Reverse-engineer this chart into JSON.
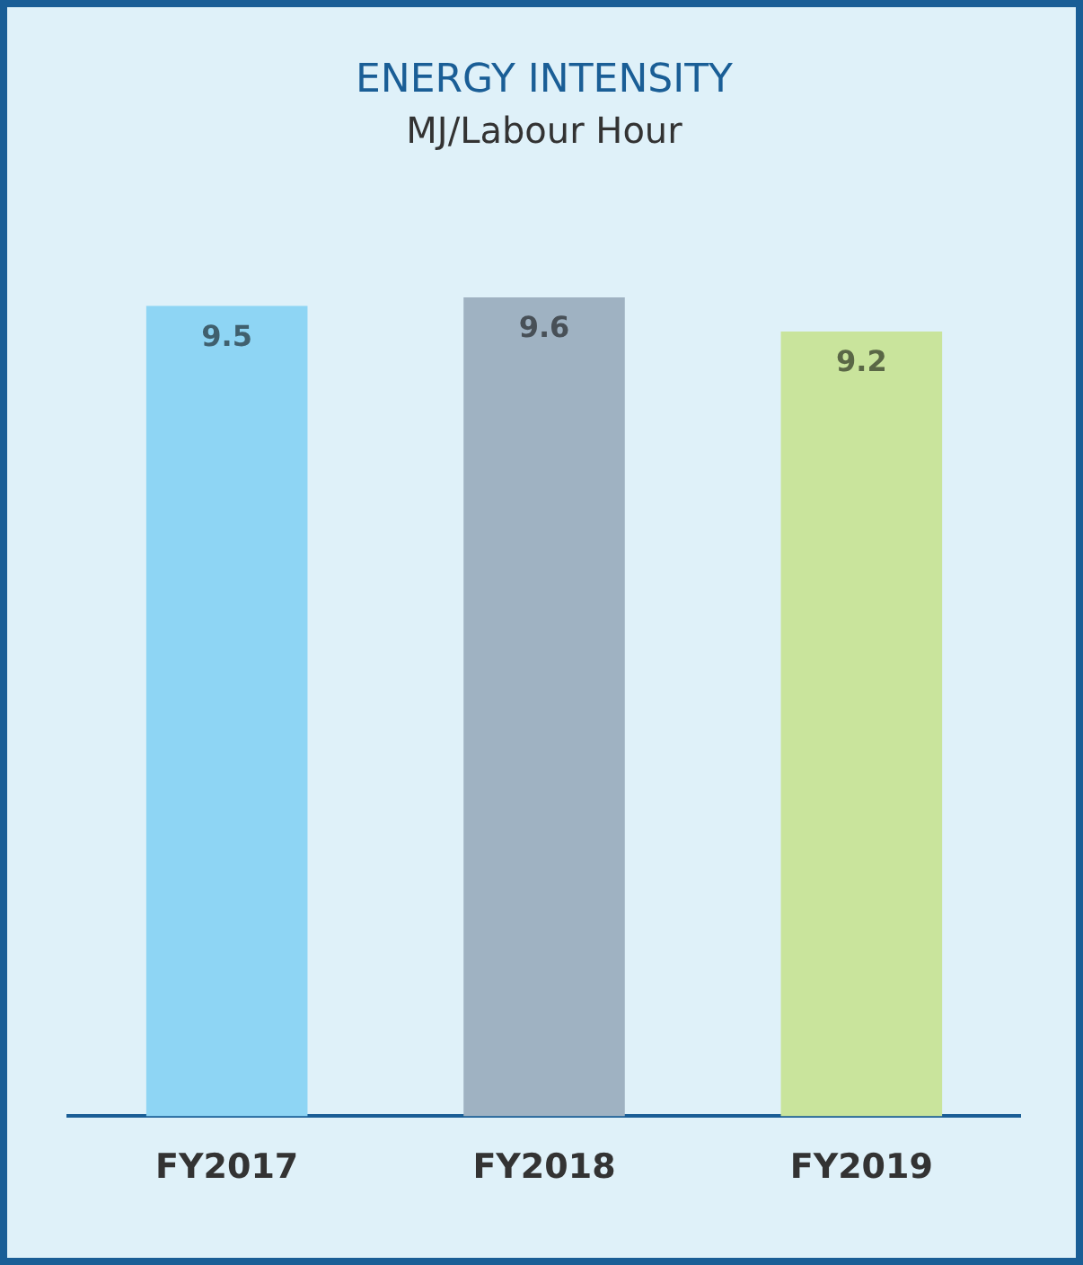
{
  "chart_data": {
    "type": "bar",
    "title": "ENERGY INTENSITY",
    "subtitle": "MJ/Labour Hour",
    "categories": [
      "FY2017",
      "FY2018",
      "FY2019"
    ],
    "values": [
      9.5,
      9.6,
      9.2
    ],
    "colors": [
      "#8ed5f4",
      "#9fb2c2",
      "#c9e49c"
    ],
    "data_labels": true,
    "tick_labels": "x",
    "legend": false
  }
}
